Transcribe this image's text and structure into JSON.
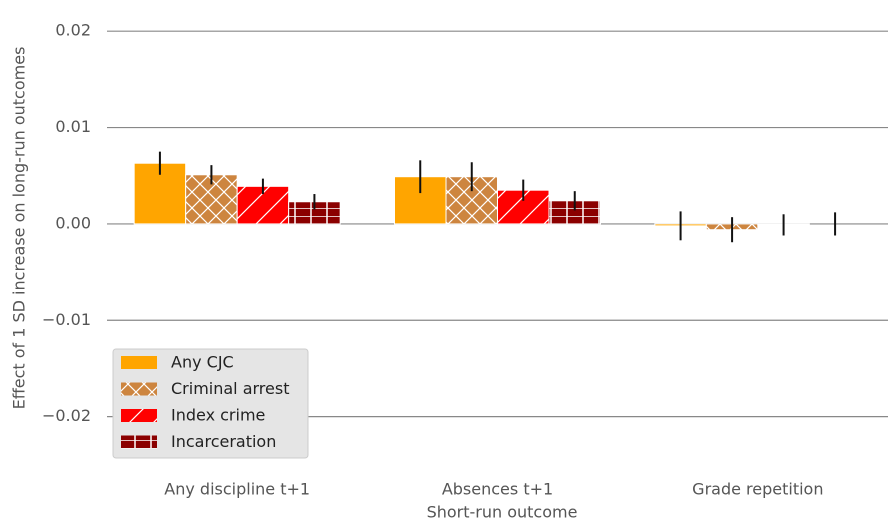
{
  "chart_data": {
    "type": "bar",
    "x_label": "Short-run outcome",
    "y_label": "Effect of 1 SD increase on long-run outcomes",
    "categories": [
      "Any discipline t+1",
      "Absences t+1",
      "Grade repetition"
    ],
    "series": [
      {
        "name": "Any CJC",
        "color": "#ffa500",
        "values": [
          0.0063,
          0.0049,
          -0.0002
        ],
        "errors": [
          0.0012,
          0.0017,
          0.0015
        ]
      },
      {
        "name": "Criminal arrest",
        "color": "#cd853f",
        "hatch": "x",
        "values": [
          0.0051,
          0.0049,
          -0.0006
        ],
        "errors": [
          0.001,
          0.0015,
          0.0013
        ]
      },
      {
        "name": "Index crime",
        "color": "#ff0000",
        "hatch": "/",
        "values": [
          0.0039,
          0.0035,
          -0.0001
        ],
        "errors": [
          0.0008,
          0.0011,
          0.0011
        ]
      },
      {
        "name": "Incarceration",
        "color": "#8b0000",
        "hatch": "-",
        "values": [
          0.0023,
          0.0024,
          0.0
        ],
        "errors": [
          0.0008,
          0.001,
          0.0012
        ]
      }
    ],
    "ylim": [
      -0.0245,
      0.0222
    ],
    "yticks": [
      0.02,
      0.01,
      {
        "value": 0,
        "label": "0.00"
      },
      {
        "value": -0.01,
        "label": "−0.01"
      },
      {
        "value": -0.02,
        "label": "−0.02"
      }
    ],
    "grid": true,
    "legend": "lower left"
  }
}
